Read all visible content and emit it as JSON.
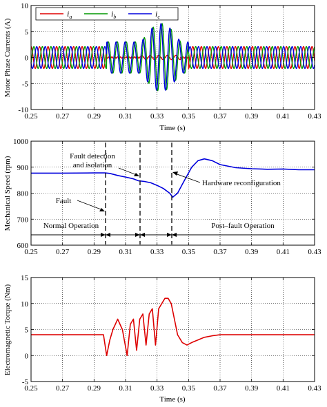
{
  "chart_data": [
    {
      "type": "line",
      "ylabel": "Motor Phase Currents (A)",
      "xlabel": "Time (s)",
      "xlim": [
        0.25,
        0.43
      ],
      "ylim": [
        -10,
        10
      ],
      "xticks": [
        "0.25",
        "0.27",
        "0.29",
        "0.31",
        "0.33",
        "0.35",
        "0.37",
        "0.39",
        "0.41",
        "0.43"
      ],
      "yticks": [
        "10",
        "5",
        "0",
        "-5",
        "-10"
      ],
      "grid": true,
      "legend_position": "top-left",
      "series": [
        {
          "name": "i_a",
          "color": "#e00000",
          "amplitude_normal": 2.1,
          "frequency_hz": 185,
          "phase_deg": 0
        },
        {
          "name": "i_b",
          "color": "#009900",
          "amplitude_normal": 2.1,
          "frequency_hz": 185,
          "phase_deg": -120
        },
        {
          "name": "i_c",
          "color": "#0000dd",
          "amplitude_normal": 2.1,
          "frequency_hz": 185,
          "phase_deg": 120
        }
      ],
      "events": {
        "open_phase_start": 0.298,
        "peak_start": 0.32,
        "peak_end": 0.345,
        "recovery_end": 0.35
      }
    },
    {
      "type": "line",
      "ylabel": "Mechanical Speed (rpm)",
      "xlabel": "",
      "xlim": [
        0.25,
        0.43
      ],
      "ylim": [
        600,
        1000
      ],
      "xticks": [
        "0.25",
        "0.27",
        "0.29",
        "0.31",
        "0.33",
        "0.35",
        "0.37",
        "0.39",
        "0.41",
        "0.43"
      ],
      "yticks": [
        "1000",
        "900",
        "800",
        "700",
        "600"
      ],
      "grid": true,
      "series": [
        {
          "name": "",
          "color": "#0000dd",
          "x": [
            0.25,
            0.27,
            0.29,
            0.297,
            0.3,
            0.305,
            0.31,
            0.315,
            0.318,
            0.322,
            0.326,
            0.33,
            0.334,
            0.338,
            0.34,
            0.343,
            0.347,
            0.352,
            0.356,
            0.36,
            0.365,
            0.37,
            0.38,
            0.39,
            0.4,
            0.41,
            0.42,
            0.43
          ],
          "y": [
            877,
            877,
            878,
            878,
            876,
            868,
            862,
            855,
            848,
            845,
            840,
            830,
            818,
            800,
            785,
            800,
            845,
            900,
            925,
            932,
            925,
            910,
            898,
            894,
            892,
            893,
            890,
            890
          ]
        }
      ],
      "annotations": [
        {
          "text": "Fault detection",
          "text2": "and isolation"
        },
        {
          "text": "Hardware reconfiguration"
        },
        {
          "text": "Fault"
        },
        {
          "text": "Normal Operation"
        },
        {
          "text": "Post–fault Operation"
        }
      ],
      "markers_x": [
        0.297,
        0.318,
        0.339
      ]
    },
    {
      "type": "line",
      "ylabel": "Electromagnetic Torque (Nm)",
      "xlabel": "Time (s)",
      "xlim": [
        0.25,
        0.43
      ],
      "ylim": [
        -5,
        15
      ],
      "xticks": [
        "0.25",
        "0.27",
        "0.29",
        "0.31",
        "0.33",
        "0.35",
        "0.37",
        "0.39",
        "0.41",
        "0.43"
      ],
      "yticks": [
        "15",
        "10",
        "5",
        "0",
        "-5"
      ],
      "grid": true,
      "series": [
        {
          "name": "",
          "color": "#dd0000",
          "x": [
            0.25,
            0.296,
            0.298,
            0.3,
            0.302,
            0.305,
            0.308,
            0.311,
            0.313,
            0.315,
            0.317,
            0.319,
            0.321,
            0.323,
            0.325,
            0.327,
            0.329,
            0.331,
            0.333,
            0.335,
            0.337,
            0.339,
            0.341,
            0.343,
            0.346,
            0.349,
            0.352,
            0.356,
            0.36,
            0.365,
            0.37,
            0.38,
            0.39,
            0.4,
            0.41,
            0.43
          ],
          "y": [
            4,
            4,
            0,
            3,
            5,
            7,
            5,
            0,
            6,
            7,
            1,
            7,
            8,
            2,
            8,
            9,
            2,
            9,
            10,
            11,
            11,
            10,
            7,
            4,
            2.5,
            2,
            2.5,
            3,
            3.5,
            3.8,
            4,
            4,
            4,
            4,
            4,
            4
          ]
        }
      ]
    }
  ]
}
